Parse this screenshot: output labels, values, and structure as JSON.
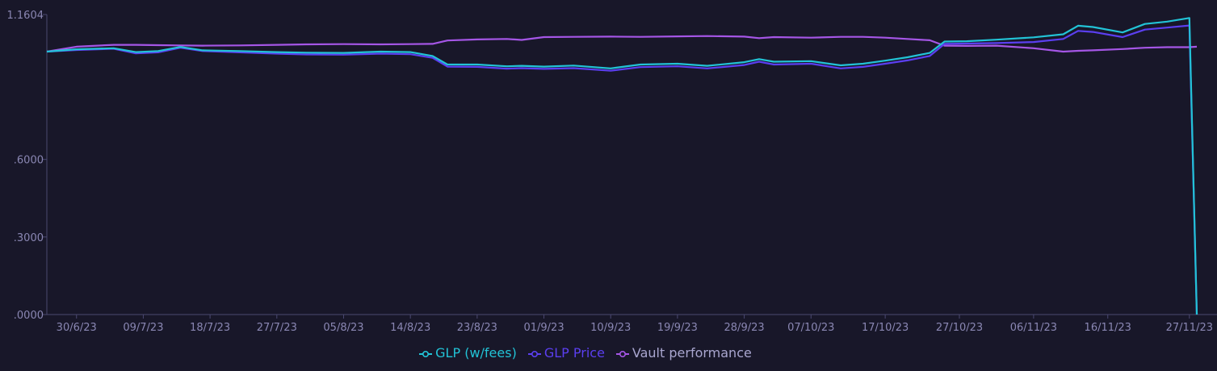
{
  "chart_data": {
    "type": "line",
    "y_ticks": [
      {
        "value": 0.0,
        "label": ".0000"
      },
      {
        "value": 0.3,
        "label": ".3000"
      },
      {
        "value": 0.6,
        "label": ".6000"
      },
      {
        "value": 1.1604,
        "label": "1.1604"
      }
    ],
    "ylim": [
      0,
      1.1604
    ],
    "x_ticks": [
      "30/6/23",
      "09/7/23",
      "18/7/23",
      "27/7/23",
      "05/8/23",
      "14/8/23",
      "23/8/23",
      "01/9/23",
      "10/9/23",
      "19/9/23",
      "28/9/23",
      "07/10/23",
      "17/10/23",
      "27/10/23",
      "06/11/23",
      "16/11/23",
      "27/11/23"
    ],
    "xlim": [
      "26/6/23",
      "28/11/23"
    ],
    "grid": false,
    "legend_position": "bottom-center",
    "series": [
      {
        "name": "GLP (w/fees)",
        "color": "#22c3d6",
        "points": [
          [
            "26/6/23",
            1.017
          ],
          [
            "30/6/23",
            1.026
          ],
          [
            "05/7/23",
            1.03
          ],
          [
            "08/7/23",
            1.015
          ],
          [
            "11/7/23",
            1.019
          ],
          [
            "14/7/23",
            1.035
          ],
          [
            "17/7/23",
            1.022
          ],
          [
            "22/7/23",
            1.019
          ],
          [
            "27/7/23",
            1.015
          ],
          [
            "31/7/23",
            1.013
          ],
          [
            "05/8/23",
            1.012
          ],
          [
            "10/8/23",
            1.017
          ],
          [
            "14/8/23",
            1.015
          ],
          [
            "17/8/23",
            1.0
          ],
          [
            "19/8/23",
            0.967
          ],
          [
            "23/8/23",
            0.967
          ],
          [
            "27/8/23",
            0.96
          ],
          [
            "29/8/23",
            0.962
          ],
          [
            "01/9/23",
            0.959
          ],
          [
            "05/9/23",
            0.963
          ],
          [
            "10/9/23",
            0.952
          ],
          [
            "14/9/23",
            0.967
          ],
          [
            "19/9/23",
            0.97
          ],
          [
            "23/9/23",
            0.962
          ],
          [
            "28/9/23",
            0.976
          ],
          [
            "30/9/23",
            0.988
          ],
          [
            "02/10/23",
            0.978
          ],
          [
            "07/10/23",
            0.98
          ],
          [
            "11/10/23",
            0.964
          ],
          [
            "14/10/23",
            0.97
          ],
          [
            "17/10/23",
            0.982
          ],
          [
            "20/10/23",
            0.995
          ],
          [
            "23/10/23",
            1.012
          ],
          [
            "25/10/23",
            1.056
          ],
          [
            "28/10/23",
            1.057
          ],
          [
            "01/11/23",
            1.063
          ],
          [
            "06/11/23",
            1.072
          ],
          [
            "10/11/23",
            1.084
          ],
          [
            "12/11/23",
            1.117
          ],
          [
            "14/11/23",
            1.112
          ],
          [
            "18/11/23",
            1.091
          ],
          [
            "21/11/23",
            1.124
          ],
          [
            "24/11/23",
            1.133
          ],
          [
            "27/11/23",
            1.147
          ],
          [
            "28/11/23",
            0.0
          ]
        ]
      },
      {
        "name": "GLP Price",
        "color": "#5b3ff0",
        "points": [
          [
            "26/6/23",
            1.017
          ],
          [
            "30/6/23",
            1.023
          ],
          [
            "05/7/23",
            1.028
          ],
          [
            "08/7/23",
            1.01
          ],
          [
            "11/7/23",
            1.014
          ],
          [
            "14/7/23",
            1.032
          ],
          [
            "17/7/23",
            1.019
          ],
          [
            "22/7/23",
            1.014
          ],
          [
            "27/7/23",
            1.009
          ],
          [
            "31/7/23",
            1.006
          ],
          [
            "05/8/23",
            1.005
          ],
          [
            "10/8/23",
            1.009
          ],
          [
            "14/8/23",
            1.007
          ],
          [
            "17/8/23",
            0.993
          ],
          [
            "19/8/23",
            0.959
          ],
          [
            "23/8/23",
            0.958
          ],
          [
            "27/8/23",
            0.951
          ],
          [
            "29/8/23",
            0.953
          ],
          [
            "01/9/23",
            0.95
          ],
          [
            "05/9/23",
            0.953
          ],
          [
            "10/9/23",
            0.943
          ],
          [
            "14/9/23",
            0.957
          ],
          [
            "19/9/23",
            0.96
          ],
          [
            "23/9/23",
            0.952
          ],
          [
            "28/9/23",
            0.965
          ],
          [
            "30/9/23",
            0.978
          ],
          [
            "02/10/23",
            0.967
          ],
          [
            "07/10/23",
            0.97
          ],
          [
            "11/10/23",
            0.952
          ],
          [
            "14/10/23",
            0.958
          ],
          [
            "17/10/23",
            0.97
          ],
          [
            "20/10/23",
            0.983
          ],
          [
            "23/10/23",
            1.0
          ],
          [
            "25/10/23",
            1.047
          ],
          [
            "28/10/23",
            1.048
          ],
          [
            "01/11/23",
            1.05
          ],
          [
            "06/11/23",
            1.054
          ],
          [
            "10/11/23",
            1.066
          ],
          [
            "12/11/23",
            1.097
          ],
          [
            "14/11/23",
            1.093
          ],
          [
            "18/11/23",
            1.073
          ],
          [
            "21/11/23",
            1.102
          ],
          [
            "24/11/23",
            1.11
          ],
          [
            "27/11/23",
            1.118
          ],
          [
            "28/11/23",
            0.0
          ]
        ]
      },
      {
        "name": "Vault performance",
        "color": "#a556e6",
        "points": [
          [
            "26/6/23",
            1.017
          ],
          [
            "30/6/23",
            1.036
          ],
          [
            "05/7/23",
            1.043
          ],
          [
            "08/7/23",
            1.043
          ],
          [
            "11/7/23",
            1.042
          ],
          [
            "14/7/23",
            1.041
          ],
          [
            "17/7/23",
            1.04
          ],
          [
            "22/7/23",
            1.041
          ],
          [
            "27/7/23",
            1.043
          ],
          [
            "31/7/23",
            1.045
          ],
          [
            "05/8/23",
            1.046
          ],
          [
            "10/8/23",
            1.045
          ],
          [
            "14/8/23",
            1.046
          ],
          [
            "17/8/23",
            1.047
          ],
          [
            "19/8/23",
            1.06
          ],
          [
            "23/8/23",
            1.064
          ],
          [
            "27/8/23",
            1.066
          ],
          [
            "29/8/23",
            1.062
          ],
          [
            "01/9/23",
            1.073
          ],
          [
            "05/9/23",
            1.074
          ],
          [
            "10/9/23",
            1.075
          ],
          [
            "14/9/23",
            1.074
          ],
          [
            "19/9/23",
            1.076
          ],
          [
            "23/9/23",
            1.077
          ],
          [
            "28/9/23",
            1.075
          ],
          [
            "30/9/23",
            1.069
          ],
          [
            "02/10/23",
            1.073
          ],
          [
            "07/10/23",
            1.071
          ],
          [
            "11/10/23",
            1.074
          ],
          [
            "14/10/23",
            1.074
          ],
          [
            "17/10/23",
            1.071
          ],
          [
            "20/10/23",
            1.066
          ],
          [
            "23/10/23",
            1.061
          ],
          [
            "25/10/23",
            1.04
          ],
          [
            "28/10/23",
            1.039
          ],
          [
            "01/11/23",
            1.04
          ],
          [
            "06/11/23",
            1.03
          ],
          [
            "10/11/23",
            1.017
          ],
          [
            "12/11/23",
            1.02
          ],
          [
            "14/11/23",
            1.022
          ],
          [
            "18/11/23",
            1.027
          ],
          [
            "21/11/23",
            1.032
          ],
          [
            "24/11/23",
            1.034
          ],
          [
            "27/11/23",
            1.034
          ],
          [
            "28/11/23",
            1.036
          ]
        ]
      }
    ]
  }
}
